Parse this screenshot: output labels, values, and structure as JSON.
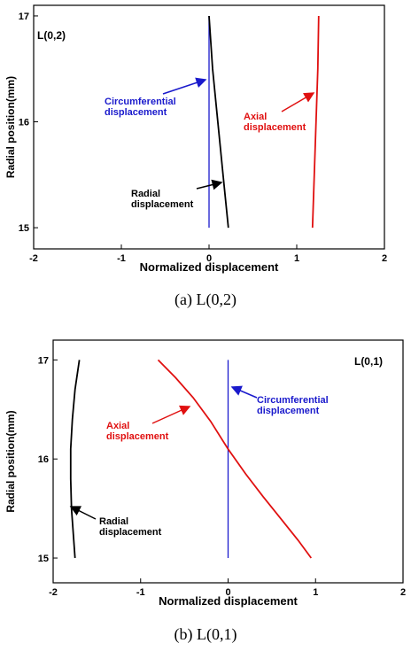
{
  "chart_data": [
    {
      "type": "line",
      "panel_label": "L(0,2)",
      "caption": "(a)  L(0,2)",
      "xlabel": "Normalized displacement",
      "ylabel": "Radial position(mm)",
      "xlim": [
        -2,
        2
      ],
      "ylim": [
        14.8,
        17.1
      ],
      "xticks": [
        "-2",
        "-1",
        "0",
        "1",
        "2"
      ],
      "yticks": [
        "15",
        "16",
        "17"
      ],
      "series": [
        {
          "name": "Circumferential displacement",
          "label_lines": [
            "Circumferential",
            "displacement"
          ],
          "color": "#1a1acc",
          "x": [
            0.0,
            0.0
          ],
          "y": [
            15.0,
            17.0
          ]
        },
        {
          "name": "Axial displacement",
          "label_lines": [
            "Axial",
            "displacement"
          ],
          "color": "#e01010",
          "x": [
            1.18,
            1.2,
            1.22,
            1.24,
            1.25
          ],
          "y": [
            15.0,
            15.5,
            16.0,
            16.5,
            17.0
          ]
        },
        {
          "name": "Radial displacement",
          "label_lines": [
            "Radial",
            "displacement"
          ],
          "color": "#000000",
          "x": [
            0.22,
            0.16,
            0.1,
            0.04,
            0.0
          ],
          "y": [
            15.0,
            15.5,
            16.0,
            16.5,
            17.0
          ]
        }
      ]
    },
    {
      "type": "line",
      "panel_label": "L(0,1)",
      "caption": "(b)  L(0,1)",
      "xlabel": "Normalized displacement",
      "ylabel": "Radial position(mm)",
      "xlim": [
        -2,
        2
      ],
      "ylim": [
        14.75,
        17.2
      ],
      "xticks": [
        "-2",
        "-1",
        "0",
        "1",
        "2"
      ],
      "yticks": [
        "15",
        "16",
        "17"
      ],
      "series": [
        {
          "name": "Circumferential displacement",
          "label_lines": [
            "Circumferential",
            "displacement"
          ],
          "color": "#1a1acc",
          "x": [
            0.0,
            0.0
          ],
          "y": [
            15.0,
            17.0
          ]
        },
        {
          "name": "Axial displacement",
          "label_lines": [
            "Axial",
            "displacement"
          ],
          "color": "#e01010",
          "x": [
            -0.8,
            -0.6,
            -0.4,
            -0.2,
            0.0,
            0.2,
            0.4,
            0.6,
            0.8,
            0.95
          ],
          "y": [
            17.0,
            16.82,
            16.62,
            16.38,
            16.1,
            15.85,
            15.62,
            15.4,
            15.18,
            15.0
          ]
        },
        {
          "name": "Radial displacement",
          "label_lines": [
            "Radial",
            "displacement"
          ],
          "color": "#000000",
          "x": [
            -1.7,
            -1.75,
            -1.78,
            -1.8,
            -1.8,
            -1.79,
            -1.77,
            -1.75
          ],
          "y": [
            17.0,
            16.7,
            16.4,
            16.1,
            15.8,
            15.5,
            15.25,
            15.0
          ]
        }
      ]
    }
  ]
}
